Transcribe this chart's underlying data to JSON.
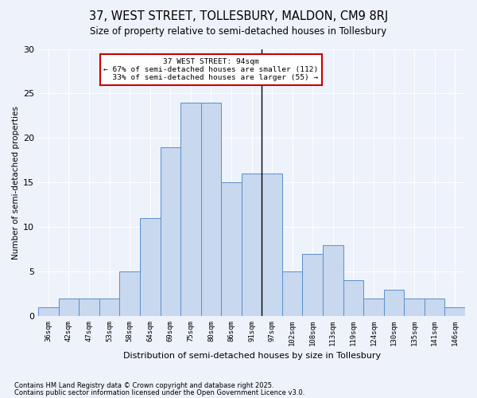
{
  "title1": "37, WEST STREET, TOLLESBURY, MALDON, CM9 8RJ",
  "title2": "Size of property relative to semi-detached houses in Tollesbury",
  "xlabel": "Distribution of semi-detached houses by size in Tollesbury",
  "ylabel": "Number of semi-detached properties",
  "bins": [
    "36sqm",
    "42sqm",
    "47sqm",
    "53sqm",
    "58sqm",
    "64sqm",
    "69sqm",
    "75sqm",
    "80sqm",
    "86sqm",
    "91sqm",
    "97sqm",
    "102sqm",
    "108sqm",
    "113sqm",
    "119sqm",
    "124sqm",
    "130sqm",
    "135sqm",
    "141sqm",
    "146sqm"
  ],
  "values": [
    1,
    2,
    2,
    2,
    5,
    11,
    19,
    24,
    24,
    15,
    16,
    16,
    5,
    7,
    8,
    4,
    2,
    3,
    2,
    2,
    1
  ],
  "bar_color": "#c8d8ef",
  "bar_edge_color": "#5b8fc9",
  "property_line_x": 10.5,
  "property_value": "94sqm",
  "pct_smaller": 67,
  "count_smaller": 112,
  "pct_larger": 33,
  "count_larger": 55,
  "annotation_box_color": "#ffffff",
  "annotation_box_edge": "#cc0000",
  "ylim": [
    0,
    30
  ],
  "yticks": [
    0,
    5,
    10,
    15,
    20,
    25,
    30
  ],
  "footnote1": "Contains HM Land Registry data © Crown copyright and database right 2025.",
  "footnote2": "Contains public sector information licensed under the Open Government Licence v3.0.",
  "bg_color": "#eef2fb"
}
